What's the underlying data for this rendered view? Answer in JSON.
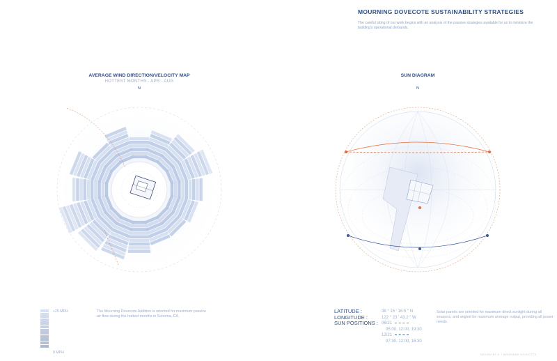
{
  "header": {
    "title": "MOURNING DOVECOTE SUSTAINABILITY STRATEGIES",
    "intro": "The careful siting of our work begins with an analysis of the passive strategies available for us to minimize the building's operational demands."
  },
  "wind_map": {
    "title": "AVERAGE WIND DIRECTION/VELOCITY MAP",
    "subtitle": "HOTTEST MONTHS - APR - AUG",
    "north": "N",
    "legend_top": "+25 MPH",
    "legend_bottom": "0 MPH",
    "description": "The Mourning Dovecote Addition is oriented for maximum passive air flow during the hottest months in Sonoma, CA.",
    "petal_levels": [
      6,
      8,
      10,
      12,
      9,
      8,
      7,
      7,
      9,
      11,
      12,
      14,
      10,
      11,
      7,
      9
    ],
    "colors": {
      "petal": "#cfdaee",
      "petal_dark": "#b7c7e4",
      "accent": "#2c4f93"
    }
  },
  "sun_diagram": {
    "title": "SUN DIAGRAM",
    "north": "N",
    "labels": {
      "latitude": "LATITUDE :",
      "longitude": "LONGITUDE :",
      "positions": "SUN POSITIONS :"
    },
    "latitude": "38 ° 15 ' 16.5 \" N",
    "longitude": "122 ° 23 ' 43.2 \" W",
    "summer_date": "06/21",
    "summer_times": "05:00, 12:00, 19:30",
    "winter_date": "12/21",
    "winter_times": "07:30, 12:00, 16:30",
    "description": "Solar panels are oriented for maximum direct sunlight during all seasons, and angled for maximum average output, providing all power needs.",
    "colors": {
      "summer": "#e86a3a",
      "winter": "#3a5aa0"
    }
  },
  "footer": "DESIGN BY A. / MOURNING DOVECOTE"
}
